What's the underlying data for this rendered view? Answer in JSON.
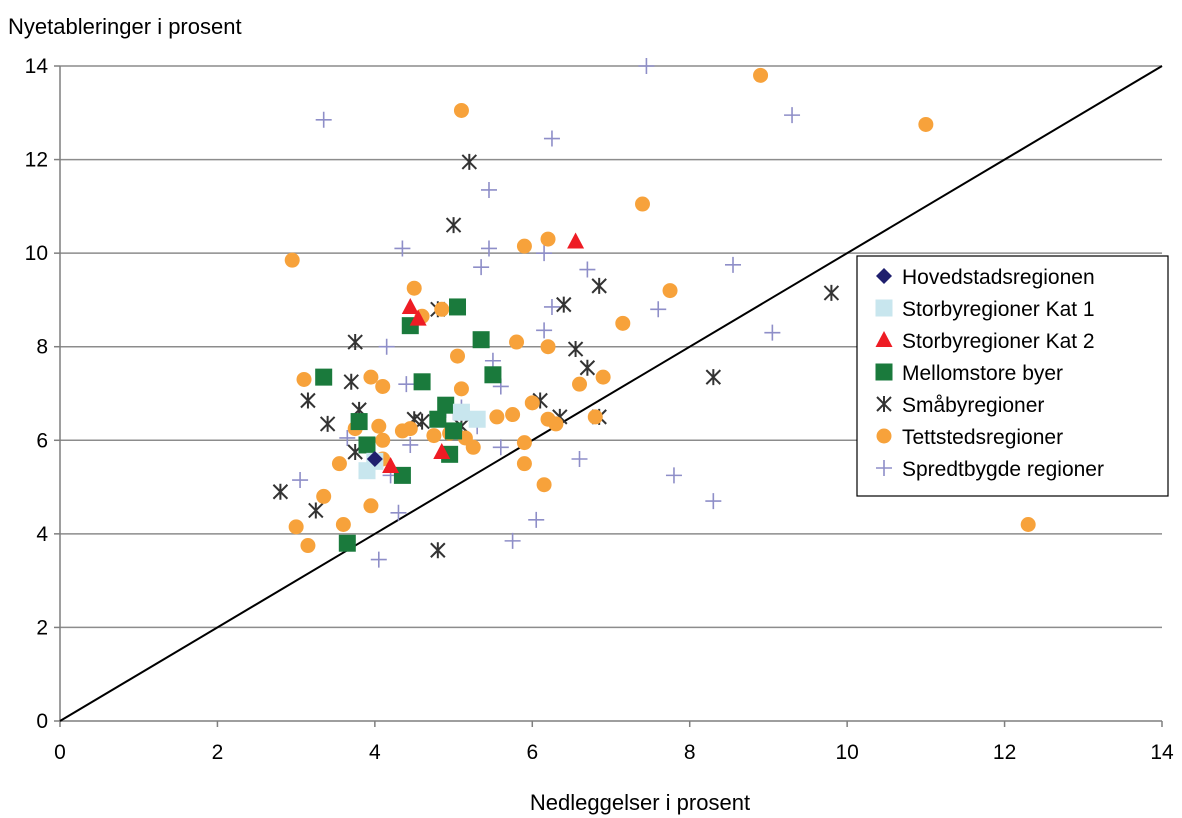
{
  "chart_data": {
    "type": "scatter",
    "title": "",
    "ylabel": "Nyetableringer i prosent",
    "xlabel": "Nedleggelser i prosent",
    "xlim": [
      0,
      14
    ],
    "ylim": [
      0,
      14
    ],
    "xticks": [
      "0",
      "2",
      "4",
      "6",
      "8",
      "10",
      "12",
      "14"
    ],
    "yticks": [
      "0",
      "2",
      "4",
      "6",
      "8",
      "10",
      "12",
      "14"
    ],
    "grid": "horizontal",
    "legend_position": "right",
    "reference_line": {
      "from": [
        0,
        0
      ],
      "to": [
        14,
        14
      ]
    },
    "series": [
      {
        "name": "Hovedstadsregionen",
        "marker": "diamond",
        "color": "#1f1f6e",
        "points": [
          [
            4.0,
            5.6
          ]
        ]
      },
      {
        "name": "Storbyregioner Kat 1",
        "marker": "square",
        "color": "#c8e6ee",
        "points": [
          [
            3.9,
            5.35
          ],
          [
            4.0,
            5.55
          ],
          [
            5.1,
            6.6
          ],
          [
            5.3,
            6.45
          ]
        ]
      },
      {
        "name": "Storbyregioner Kat 2",
        "marker": "triangle",
        "color": "#ee1c24",
        "points": [
          [
            6.55,
            10.25
          ],
          [
            4.45,
            8.85
          ],
          [
            4.55,
            8.6
          ],
          [
            4.85,
            5.75
          ],
          [
            4.2,
            5.45
          ]
        ]
      },
      {
        "name": "Mellomstore byer",
        "marker": "square",
        "color": "#1a7a3c",
        "points": [
          [
            5.05,
            8.85
          ],
          [
            4.45,
            8.45
          ],
          [
            5.35,
            8.15
          ],
          [
            3.35,
            7.35
          ],
          [
            4.6,
            7.25
          ],
          [
            5.5,
            7.4
          ],
          [
            3.8,
            6.4
          ],
          [
            4.8,
            6.45
          ],
          [
            4.9,
            6.75
          ],
          [
            5.0,
            6.2
          ],
          [
            3.9,
            5.9
          ],
          [
            4.35,
            5.25
          ],
          [
            4.95,
            5.7
          ],
          [
            3.65,
            3.8
          ]
        ]
      },
      {
        "name": "Småbyregioner",
        "marker": "star",
        "color": "#333333",
        "points": [
          [
            5.2,
            11.95
          ],
          [
            5.0,
            10.6
          ],
          [
            6.4,
            8.9
          ],
          [
            6.85,
            9.3
          ],
          [
            9.8,
            9.15
          ],
          [
            4.8,
            8.8
          ],
          [
            3.75,
            8.1
          ],
          [
            6.55,
            7.95
          ],
          [
            6.7,
            7.55
          ],
          [
            8.3,
            7.35
          ],
          [
            3.7,
            7.25
          ],
          [
            3.15,
            6.85
          ],
          [
            3.8,
            6.65
          ],
          [
            6.1,
            6.85
          ],
          [
            3.4,
            6.35
          ],
          [
            4.5,
            6.45
          ],
          [
            4.6,
            6.4
          ],
          [
            5.1,
            6.3
          ],
          [
            6.35,
            6.5
          ],
          [
            6.85,
            6.5
          ],
          [
            3.75,
            5.75
          ],
          [
            2.8,
            4.9
          ],
          [
            3.25,
            4.5
          ],
          [
            4.8,
            3.65
          ]
        ]
      },
      {
        "name": "Tettstedsregioner",
        "marker": "circle",
        "color": "#f7a23b",
        "points": [
          [
            5.1,
            13.05
          ],
          [
            8.9,
            13.8
          ],
          [
            11.0,
            12.75
          ],
          [
            7.4,
            11.05
          ],
          [
            2.95,
            9.85
          ],
          [
            5.9,
            10.15
          ],
          [
            6.2,
            10.3
          ],
          [
            4.5,
            9.25
          ],
          [
            4.85,
            8.8
          ],
          [
            4.6,
            8.65
          ],
          [
            7.75,
            9.2
          ],
          [
            7.15,
            8.5
          ],
          [
            5.05,
            7.8
          ],
          [
            5.8,
            8.1
          ],
          [
            6.2,
            8.0
          ],
          [
            3.1,
            7.3
          ],
          [
            3.95,
            7.35
          ],
          [
            4.1,
            7.15
          ],
          [
            5.1,
            7.1
          ],
          [
            6.6,
            7.2
          ],
          [
            6.9,
            7.35
          ],
          [
            3.75,
            6.25
          ],
          [
            4.05,
            6.3
          ],
          [
            4.35,
            6.2
          ],
          [
            4.45,
            6.25
          ],
          [
            4.75,
            6.1
          ],
          [
            4.95,
            6.15
          ],
          [
            4.1,
            6.0
          ],
          [
            5.15,
            6.05
          ],
          [
            5.25,
            5.85
          ],
          [
            5.55,
            6.5
          ],
          [
            5.75,
            6.55
          ],
          [
            6.0,
            6.8
          ],
          [
            6.2,
            6.45
          ],
          [
            6.3,
            6.35
          ],
          [
            5.9,
            5.95
          ],
          [
            6.8,
            6.5
          ],
          [
            3.55,
            5.5
          ],
          [
            4.1,
            5.6
          ],
          [
            5.9,
            5.5
          ],
          [
            6.15,
            5.05
          ],
          [
            3.35,
            4.8
          ],
          [
            3.95,
            4.6
          ],
          [
            3.0,
            4.15
          ],
          [
            3.6,
            4.2
          ],
          [
            3.15,
            3.75
          ],
          [
            12.3,
            4.2
          ]
        ]
      },
      {
        "name": "Spredtbygde regioner",
        "marker": "plus",
        "color": "#8e8ec8",
        "points": [
          [
            7.45,
            14.0
          ],
          [
            3.35,
            12.85
          ],
          [
            9.3,
            12.95
          ],
          [
            6.25,
            12.45
          ],
          [
            5.45,
            11.35
          ],
          [
            4.35,
            10.1
          ],
          [
            5.45,
            10.1
          ],
          [
            5.35,
            9.7
          ],
          [
            6.15,
            10.0
          ],
          [
            6.7,
            9.65
          ],
          [
            8.55,
            9.75
          ],
          [
            7.6,
            8.8
          ],
          [
            6.25,
            8.85
          ],
          [
            6.15,
            8.35
          ],
          [
            9.05,
            8.3
          ],
          [
            4.15,
            8.0
          ],
          [
            5.5,
            7.7
          ],
          [
            5.6,
            7.15
          ],
          [
            4.4,
            7.2
          ],
          [
            5.0,
            6.6
          ],
          [
            5.1,
            6.7
          ],
          [
            4.9,
            6.65
          ],
          [
            5.3,
            6.3
          ],
          [
            3.65,
            6.05
          ],
          [
            4.45,
            5.9
          ],
          [
            5.6,
            5.85
          ],
          [
            6.6,
            5.6
          ],
          [
            3.05,
            5.15
          ],
          [
            4.2,
            5.25
          ],
          [
            7.8,
            5.25
          ],
          [
            8.3,
            4.7
          ],
          [
            4.3,
            4.45
          ],
          [
            6.05,
            4.3
          ],
          [
            5.75,
            3.85
          ],
          [
            4.05,
            3.45
          ]
        ]
      }
    ]
  }
}
